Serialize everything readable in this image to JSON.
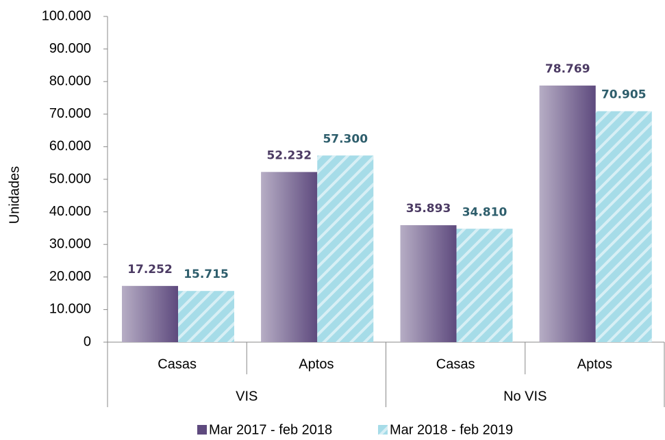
{
  "chart_data": {
    "type": "bar",
    "y_label": "Unidades",
    "categories": [
      "Casas",
      "Aptos",
      "Casas",
      "Aptos"
    ],
    "category_groups": [
      "VIS",
      "No VIS"
    ],
    "series": [
      {
        "name": "Mar 2017 - feb 2018",
        "color": "#5e4a7e",
        "label_color": "#4b3a63",
        "values": [
          17252,
          52232,
          35893,
          78769
        ],
        "value_labels": [
          "17.252",
          "52.232",
          "35.893",
          "78.769"
        ]
      },
      {
        "name": "Mar 2018 - feb 2019",
        "color": "#a6dce8",
        "label_color": "#2e5e6c",
        "values": [
          15715,
          57300,
          34810,
          70905
        ],
        "value_labels": [
          "15.715",
          "57.300",
          "34.810",
          "70.905"
        ]
      }
    ],
    "ylim": [
      0,
      100000
    ],
    "yticks": [
      0,
      {
        "value": 10000,
        "label": "10.000"
      },
      {
        "value": 20000,
        "label": "20.000"
      },
      {
        "value": 30000,
        "label": "30.000"
      },
      {
        "value": 40000,
        "label": "40.000"
      },
      {
        "value": 50000,
        "label": "50.000"
      },
      {
        "value": 60000,
        "label": "60.000"
      },
      {
        "value": 70000,
        "label": "70.000"
      },
      {
        "value": 80000,
        "label": "80.000"
      },
      {
        "value": 90000,
        "label": "90.000"
      },
      {
        "value": 100000,
        "label": "100.000"
      }
    ],
    "grid": false
  }
}
